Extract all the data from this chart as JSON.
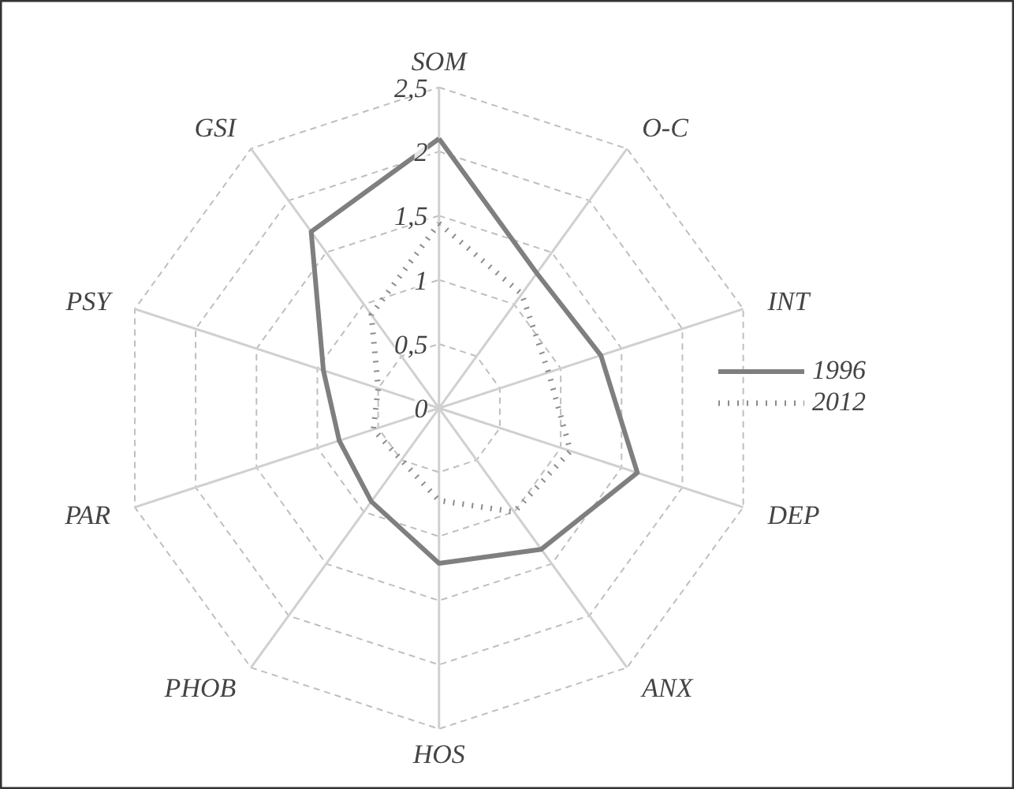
{
  "chart_data": {
    "type": "radar",
    "categories": [
      "SOM",
      "O-C",
      "INT",
      "DEP",
      "ANX",
      "HOS",
      "PHOB",
      "PAR",
      "PSY",
      "GSI"
    ],
    "ylim": [
      0,
      2.5
    ],
    "yticks": [
      0,
      {
        "value": 0.5,
        "label": "0,5"
      },
      1,
      {
        "value": 1.5,
        "label": "1,5"
      },
      2,
      {
        "value": 2.5,
        "label": "2,5"
      }
    ],
    "grid": true,
    "legend": "right",
    "series": [
      {
        "name": "1996",
        "color": "#7f7f7f",
        "line_style": "solid",
        "values": [
          2.1,
          1.3,
          1.33,
          1.63,
          1.36,
          1.21,
          0.9,
          0.82,
          0.95,
          1.7
        ]
      },
      {
        "name": "2012",
        "color": "#8c8c8c",
        "line_style": "dotted",
        "values": [
          1.44,
          1.1,
          0.9,
          1.08,
          1.0,
          0.72,
          0.5,
          0.54,
          0.5,
          0.9
        ]
      }
    ]
  }
}
